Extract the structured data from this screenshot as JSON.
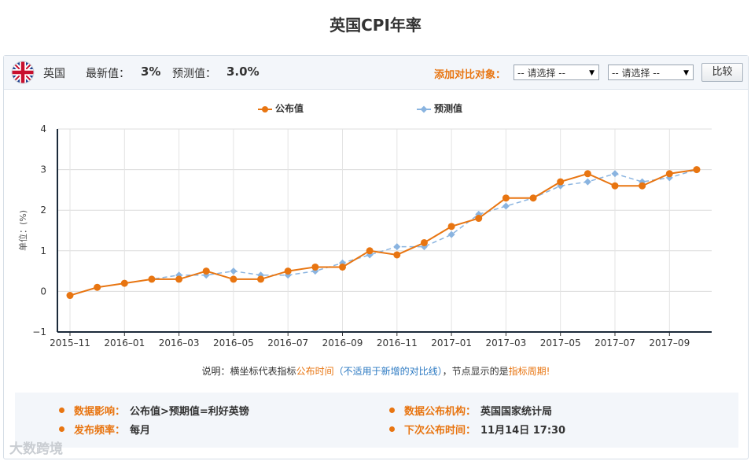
{
  "header": {
    "title": "英国CPI年率"
  },
  "toolbar": {
    "country": "英国",
    "latest_label": "最新值：",
    "latest_value": "3%",
    "forecast_label": "预测值：",
    "forecast_value": "3.0%",
    "compare_label": "添加对比对象：",
    "select1_value": "-- 请选择 --",
    "select2_value": "-- 请选择 --",
    "compare_button": "比较"
  },
  "legend": {
    "published": "公布值",
    "forecast": "预测值"
  },
  "colors": {
    "published": "#e87511",
    "forecast": "#8ab4e0",
    "accent": "#e87511",
    "link": "#2b79c2"
  },
  "note": {
    "prefix": "说明：横坐标代表指标",
    "publish_time": "公布时间",
    "paren": "（不适用于新增的对比线）",
    "mid": "，节点显示的是",
    "period": "指标周期",
    "end": "!"
  },
  "info": {
    "impact_label": "数据影响：",
    "impact_value": "公布值>预期值=利好英镑",
    "org_label": "数据公布机构：",
    "org_value": "英国国家统计局",
    "freq_label": "发布频率：",
    "freq_value": "每月",
    "next_label": "下次公布时间：",
    "next_value": "11月14日 17:30"
  },
  "watermark": "大数跨境",
  "chart_data": {
    "type": "line",
    "ylabel": "单位：(%)",
    "ylim": [
      -1,
      4
    ],
    "yticks": [
      -1,
      0,
      1,
      2,
      3,
      4
    ],
    "grid": true,
    "legend_position": "top-center",
    "x": [
      "2015-11",
      "2015-12",
      "2016-01",
      "2016-02",
      "2016-03",
      "2016-04",
      "2016-05",
      "2016-06",
      "2016-07",
      "2016-08",
      "2016-09",
      "2016-10",
      "2016-11",
      "2016-12",
      "2017-01",
      "2017-02",
      "2017-03",
      "2017-04",
      "2017-05",
      "2017-06",
      "2017-07",
      "2017-08",
      "2017-09",
      "2017-10"
    ],
    "xtick_labels": [
      "2015-11",
      "2016-01",
      "2016-03",
      "2016-05",
      "2016-07",
      "2016-09",
      "2016-11",
      "2017-01",
      "2017-03",
      "2017-05",
      "2017-07",
      "2017-09"
    ],
    "series": [
      {
        "name": "公布值",
        "values": [
          -0.1,
          0.1,
          0.2,
          0.3,
          0.3,
          0.5,
          0.3,
          0.3,
          0.5,
          0.6,
          0.6,
          1.0,
          0.9,
          1.2,
          1.6,
          1.8,
          2.3,
          2.3,
          2.7,
          2.9,
          2.6,
          2.6,
          2.9,
          3.0
        ]
      },
      {
        "name": "预测值",
        "values": [
          -0.1,
          0.1,
          0.2,
          0.3,
          0.4,
          0.4,
          0.5,
          0.4,
          0.4,
          0.5,
          0.7,
          0.9,
          1.1,
          1.1,
          1.4,
          1.9,
          2.1,
          2.3,
          2.6,
          2.7,
          2.9,
          2.7,
          2.8,
          3.0
        ]
      }
    ]
  }
}
